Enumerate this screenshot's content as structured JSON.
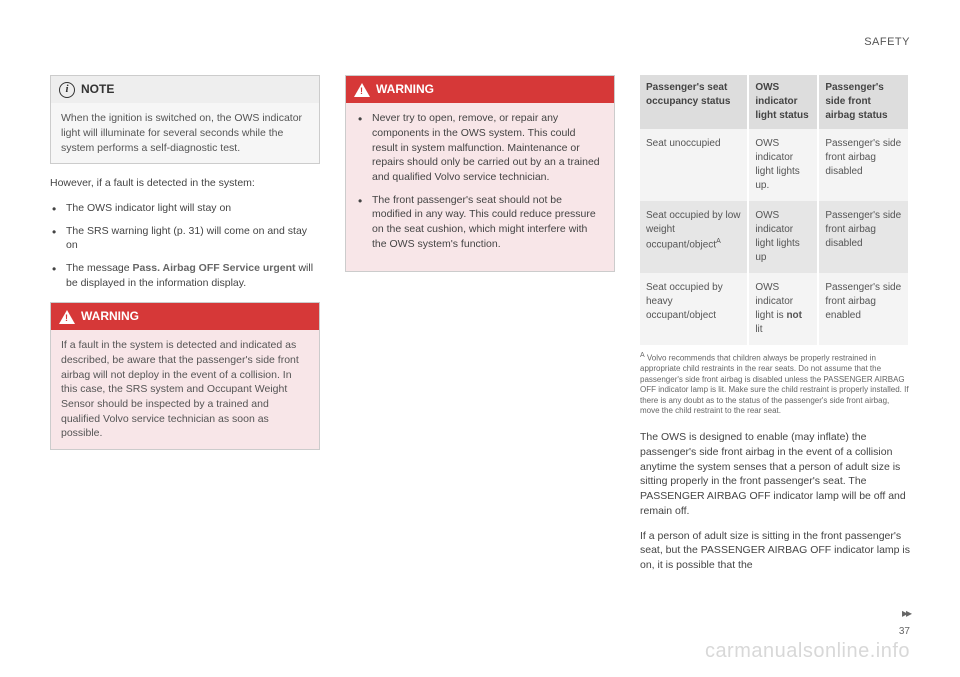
{
  "header": {
    "section": "SAFETY"
  },
  "col1": {
    "note": {
      "title": "NOTE",
      "body": "When the ignition is switched on, the OWS indicator light will illuminate for several seconds while the system performs a self-diagnostic test."
    },
    "intro": "However, if a fault is detected in the system:",
    "bullets": [
      "The OWS indicator light will stay on",
      "The SRS warning light (p. 31) will come on and stay on",
      "The message Pass. Airbag OFF Service urgent will be displayed in the information display."
    ],
    "bullet3_bold": "Pass. Airbag OFF Service urgent",
    "warning": {
      "title": "WARNING",
      "body": "If a fault in the system is detected and indicated as described, be aware that the passenger's side front airbag will not deploy in the event of a collision. In this case, the SRS system and Occupant Weight Sensor should be inspected by a trained and qualified Volvo service technician as soon as possible."
    }
  },
  "col2": {
    "warning": {
      "title": "WARNING",
      "bullets": [
        "Never try to open, remove, or repair any components in the OWS system. This could result in system malfunction. Maintenance or repairs should only be carried out by an a trained and qualified Volvo service technician.",
        "The front passenger's seat should not be modified in any way. This could reduce pressure on the seat cushion, which might interfere with the OWS system's function."
      ]
    }
  },
  "col3": {
    "table": {
      "headers": [
        "Passenger's seat occupancy status",
        "OWS indicator light status",
        "Passenger's side front airbag status"
      ],
      "rows": [
        [
          "Seat unoccupied",
          "OWS indicator light lights up.",
          "Passenger's side front airbag disabled"
        ],
        [
          "Seat occupied by low weight occupant/objectᴬ",
          "OWS indicator light lights up",
          "Passenger's side front airbag disabled"
        ],
        [
          "Seat occupied by heavy occupant/object",
          "OWS indicator light is not lit",
          "Passenger's side front airbag enabled"
        ]
      ],
      "row2_not_bold": "not"
    },
    "footnote_label": "A",
    "footnote": "Volvo recommends that children always be properly restrained in appropriate child restraints in the rear seats. Do not assume that the passenger's side front airbag is disabled unless the PASSENGER AIRBAG OFF indicator lamp is lit. Make sure the child restraint is properly installed. If there is any doubt as to the status of the passenger's side front airbag, move the child restraint to the rear seat.",
    "para1": "The OWS is designed to enable (may inflate) the passenger's side front airbag in the event of a collision anytime the system senses that a person of adult size is sitting properly in the front passenger's seat. The PASSENGER AIRBAG OFF indicator lamp will be off and remain off.",
    "para2": "If a person of adult size is sitting in the front passenger's seat, but the PASSENGER AIRBAG OFF indicator lamp is on, it is possible that the"
  },
  "pagenum": "37",
  "continue": "▸▸",
  "watermark": "carmanualsonline.info"
}
